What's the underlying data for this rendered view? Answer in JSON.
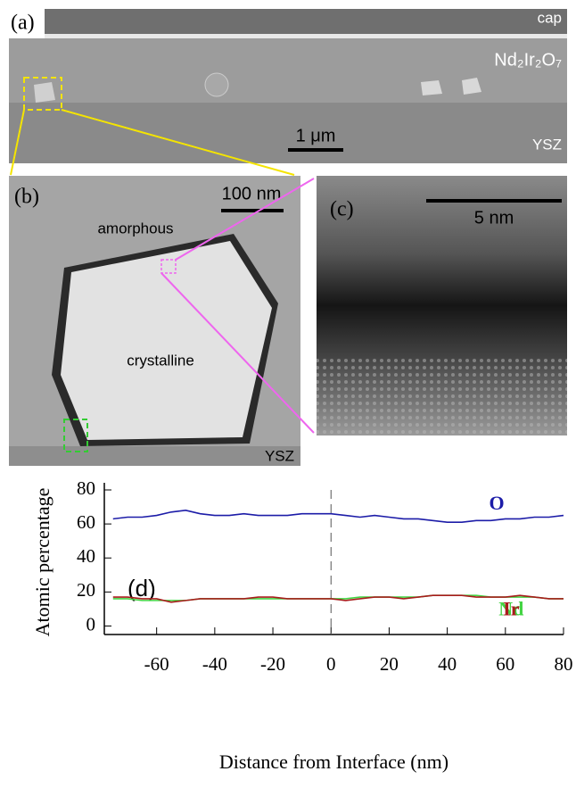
{
  "panels": {
    "a": {
      "label": "(a)",
      "cap": "cap",
      "film": "Nd₂Ir₂O₇",
      "scale": "1 μm",
      "substrate": "YSZ"
    },
    "b": {
      "label": "(b)",
      "scale": "100 nm",
      "amorphous": "amorphous",
      "crystalline": "crystalline",
      "substrate": "YSZ"
    },
    "c": {
      "label": "(c)",
      "scale": "5 nm"
    }
  },
  "chart_data": {
    "type": "line",
    "panel_label": "(d)",
    "xlabel": "Distance from Interface (nm)",
    "ylabel": "Atomic percentage",
    "x": [
      -75,
      -70,
      -65,
      -60,
      -55,
      -50,
      -45,
      -40,
      -35,
      -30,
      -25,
      -20,
      -15,
      -10,
      -5,
      0,
      5,
      10,
      15,
      20,
      25,
      30,
      35,
      40,
      45,
      50,
      55,
      60,
      65,
      70,
      75,
      80
    ],
    "series": [
      {
        "name": "O",
        "color": "#1c1ca8",
        "values": [
          63,
          64,
          64,
          65,
          67,
          68,
          66,
          65,
          65,
          66,
          65,
          65,
          65,
          66,
          66,
          66,
          65,
          64,
          65,
          64,
          63,
          63,
          62,
          61,
          61,
          62,
          62,
          63,
          63,
          64,
          64,
          65
        ]
      },
      {
        "name": "Nd",
        "color": "#44d444",
        "values": [
          16,
          16,
          15,
          15,
          15,
          15,
          16,
          16,
          16,
          16,
          16,
          16,
          16,
          16,
          16,
          16,
          16,
          17,
          17,
          17,
          17,
          17,
          18,
          18,
          18,
          18,
          17,
          17,
          17,
          17,
          16,
          16
        ]
      },
      {
        "name": "Ir",
        "color": "#a81c1c",
        "values": [
          17,
          17,
          16,
          16,
          14,
          15,
          16,
          16,
          16,
          16,
          17,
          17,
          16,
          16,
          16,
          16,
          15,
          16,
          17,
          17,
          16,
          17,
          18,
          18,
          18,
          17,
          17,
          17,
          18,
          17,
          16,
          16
        ]
      }
    ],
    "xlim": [
      -78,
      80
    ],
    "ylim": [
      -5,
      80
    ],
    "xticks": [
      -60,
      -40,
      -20,
      0,
      20,
      40,
      60,
      80
    ],
    "yticks": [
      0,
      20,
      40,
      60,
      80
    ]
  }
}
